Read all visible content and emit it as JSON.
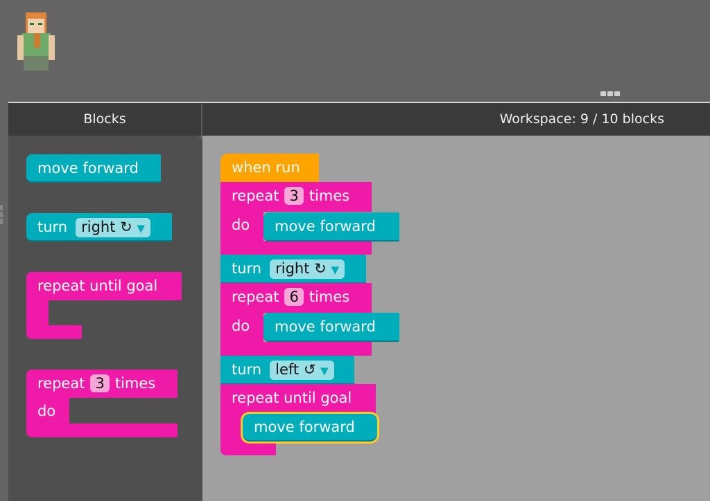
{
  "header": {
    "blocks_title": "Blocks",
    "workspace_label": "Workspace: 9 / 10 blocks"
  },
  "colors": {
    "movement": "#00adbb",
    "loop": "#ef1ba8",
    "event": "#ffa300",
    "selected_outline": "#ffcc22"
  },
  "toolbox": {
    "move_forward": "move forward",
    "turn": {
      "label": "turn",
      "value": "right ↻",
      "arrow": "▼"
    },
    "repeat_until": "repeat until goal",
    "repeat": {
      "label": "repeat",
      "count": "3",
      "suffix": "times",
      "do": "do"
    }
  },
  "workspace": {
    "when_run": "when run",
    "repeat1": {
      "label": "repeat",
      "count": "3",
      "suffix": "times",
      "do": "do",
      "inner": "move forward"
    },
    "turn1": {
      "label": "turn",
      "value": "right ↻",
      "arrow": "▼"
    },
    "repeat2": {
      "label": "repeat",
      "count": "6",
      "suffix": "times",
      "do": "do",
      "inner": "move forward"
    },
    "turn2": {
      "label": "turn",
      "value": "left ↺",
      "arrow": "▼"
    },
    "repeat_until": {
      "label": "repeat until goal",
      "inner": "move forward"
    }
  }
}
